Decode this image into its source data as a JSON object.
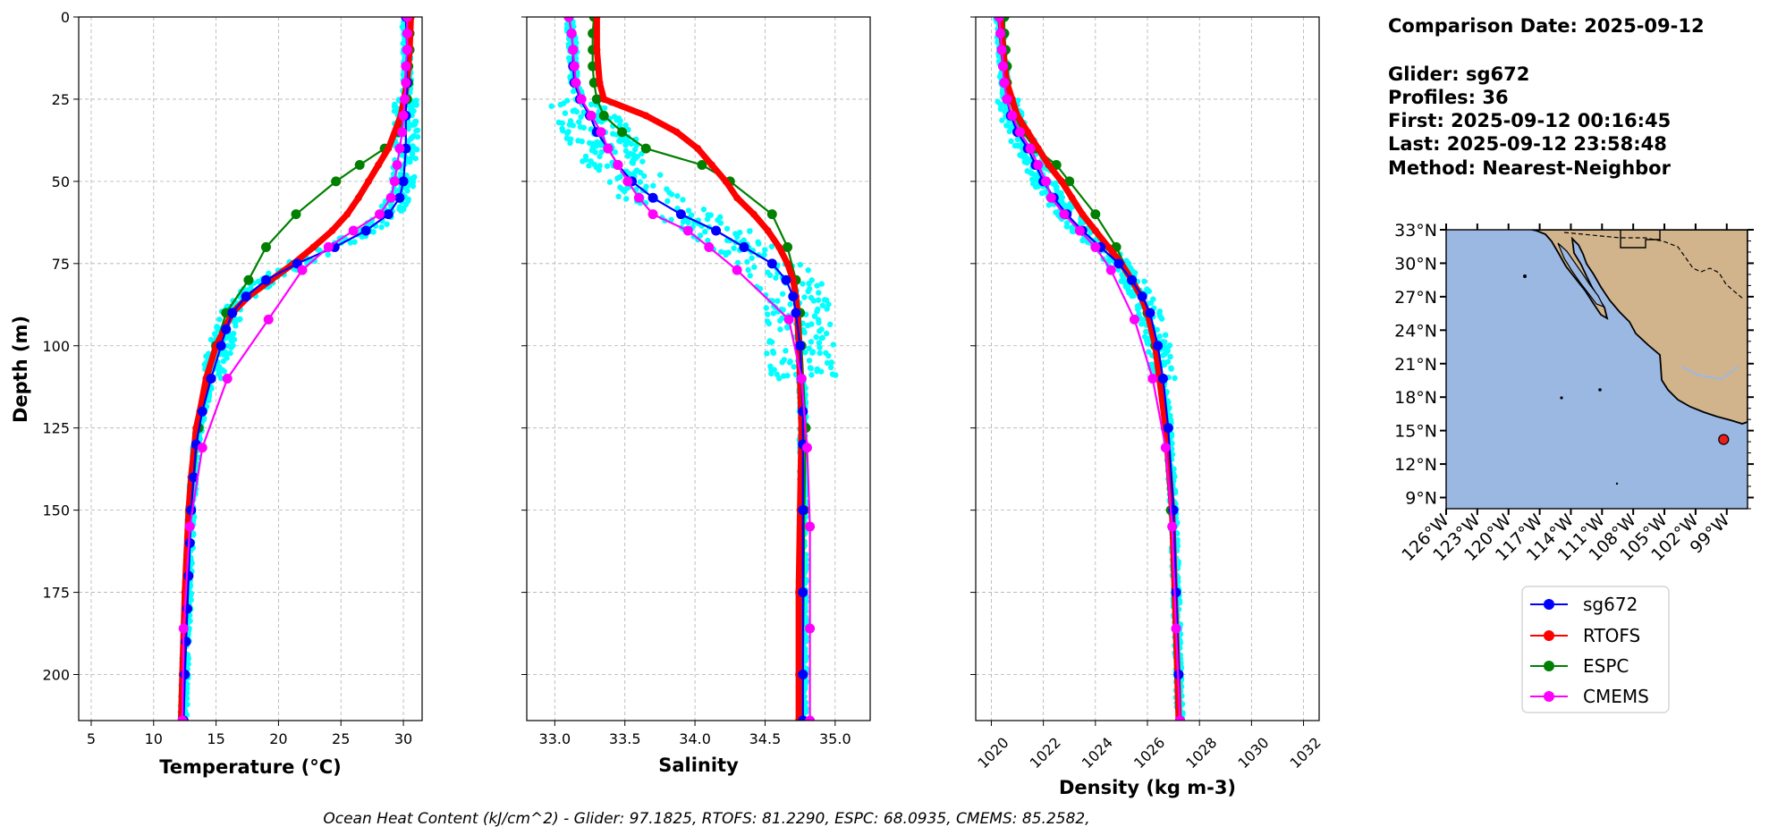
{
  "info": {
    "comparison_date": "Comparison Date: 2025-09-12",
    "glider": "Glider: sg672",
    "profiles": "Profiles: 36",
    "first": "First: 2025-09-12 00:16:45",
    "last": "Last: 2025-09-12 23:58:48",
    "method": "Method: Nearest-Neighbor"
  },
  "footer": "Ocean Heat Content (kJ/cm^2) - Glider: 97.1825,  RTOFS: 81.2290,  ESPC: 68.0935,  CMEMS: 85.2582,",
  "colors": {
    "glider": "#0000ff",
    "glider_cloud": "#00ffff",
    "rtofs": "#ff0000",
    "espc": "#008000",
    "cmems": "#ff00ff",
    "ocean": "#9bb8e3",
    "land": "#d2b48c",
    "station": "#e8201c"
  },
  "legend": [
    "sg672",
    "RTOFS",
    "ESPC",
    "CMEMS"
  ],
  "map": {
    "lat_labels": [
      "33°N",
      "30°N",
      "27°N",
      "24°N",
      "21°N",
      "18°N",
      "15°N",
      "12°N",
      "9°N"
    ],
    "lon_labels": [
      "126°W",
      "123°W",
      "120°W",
      "117°W",
      "114°W",
      "111°W",
      "108°W",
      "105°W",
      "102°W",
      "99°W"
    ],
    "lat_values": [
      33,
      30,
      27,
      24,
      21,
      18,
      15,
      12,
      9
    ],
    "lon_values": [
      -126,
      -123,
      -120,
      -117,
      -114,
      -111,
      -108,
      -105,
      -102,
      -99
    ],
    "lon_range": [
      -126,
      -97
    ],
    "lat_range": [
      8,
      33
    ],
    "station_lon": -99.3,
    "station_lat": 14.2
  },
  "chart_data": [
    {
      "type": "line",
      "title": "",
      "xlabel": "Temperature (°C)",
      "ylabel": "Depth (m)",
      "xlim": [
        4,
        31.5
      ],
      "ylim": [
        214,
        0
      ],
      "xticks": [
        5,
        10,
        15,
        20,
        25,
        30
      ],
      "yticks": [
        0,
        25,
        50,
        75,
        100,
        125,
        150,
        175,
        200
      ],
      "grid": true,
      "series": [
        {
          "name": "sg672",
          "depth": [
            0,
            10,
            20,
            30,
            40,
            50,
            55,
            60,
            65,
            70,
            75,
            80,
            85,
            90,
            95,
            100,
            110,
            120,
            130,
            140,
            150,
            160,
            170,
            180,
            190,
            200,
            214
          ],
          "values": [
            30.2,
            30.3,
            30.3,
            30.2,
            30.2,
            30.0,
            29.7,
            28.8,
            27.0,
            24.5,
            21.5,
            19.0,
            17.4,
            16.3,
            15.8,
            15.4,
            14.6,
            13.9,
            13.4,
            13.2,
            13.0,
            12.9,
            12.8,
            12.7,
            12.6,
            12.5,
            12.4
          ]
        },
        {
          "name": "RTOFS",
          "depth": [
            0,
            10,
            20,
            30,
            40,
            45,
            50,
            55,
            60,
            65,
            70,
            75,
            80,
            85,
            90,
            100,
            110,
            120,
            125,
            140,
            150,
            175,
            200,
            214
          ],
          "values": [
            30.6,
            30.5,
            30.3,
            29.8,
            28.8,
            28.0,
            27.2,
            26.4,
            25.5,
            24.3,
            22.8,
            21.2,
            19.4,
            17.6,
            16.3,
            15.0,
            14.2,
            13.7,
            13.4,
            13.0,
            12.8,
            12.5,
            12.3,
            12.2
          ]
        },
        {
          "name": "ESPC",
          "depth": [
            0,
            5,
            10,
            15,
            20,
            25,
            30,
            35,
            40,
            45,
            50,
            60,
            70,
            80,
            90,
            100,
            125,
            150,
            200,
            214
          ],
          "values": [
            30.5,
            30.5,
            30.5,
            30.4,
            30.4,
            30.3,
            30.1,
            29.6,
            28.5,
            26.5,
            24.6,
            21.4,
            19.0,
            17.6,
            15.8,
            15.0,
            13.6,
            13.0,
            12.5,
            12.4
          ]
        },
        {
          "name": "CMEMS",
          "depth": [
            0,
            5,
            10,
            15,
            20,
            25,
            30,
            35,
            40,
            45,
            50,
            55,
            60,
            65,
            70,
            77,
            92,
            110,
            131,
            155,
            186,
            214
          ],
          "values": [
            30.3,
            30.3,
            30.3,
            30.2,
            30.2,
            30.1,
            30.0,
            29.9,
            29.7,
            29.5,
            29.3,
            29.0,
            28.1,
            26.0,
            24.0,
            21.9,
            19.2,
            15.9,
            13.9,
            12.9,
            12.4,
            12.3
          ]
        }
      ]
    },
    {
      "type": "line",
      "title": "",
      "xlabel": "Salinity",
      "ylabel": "",
      "xlim": [
        32.8,
        35.25
      ],
      "ylim": [
        214,
        0
      ],
      "xticks": [
        33.0,
        33.5,
        34.0,
        34.5,
        35.0
      ],
      "yticks": [
        0,
        25,
        50,
        75,
        100,
        125,
        150,
        175,
        200
      ],
      "grid": true,
      "series": [
        {
          "name": "sg672",
          "depth": [
            0,
            5,
            10,
            15,
            20,
            25,
            30,
            35,
            40,
            45,
            50,
            55,
            60,
            65,
            70,
            75,
            80,
            85,
            90,
            100,
            110,
            120,
            130,
            150,
            175,
            200,
            214
          ],
          "values": [
            33.1,
            33.12,
            33.13,
            33.13,
            33.14,
            33.18,
            33.25,
            33.3,
            33.38,
            33.45,
            33.55,
            33.7,
            33.9,
            34.15,
            34.35,
            34.55,
            34.65,
            34.7,
            34.72,
            34.75,
            34.76,
            34.77,
            34.77,
            34.77,
            34.77,
            34.77,
            34.77
          ]
        },
        {
          "name": "RTOFS",
          "depth": [
            0,
            10,
            20,
            25,
            30,
            35,
            40,
            45,
            50,
            55,
            60,
            65,
            70,
            75,
            80,
            85,
            90,
            100,
            110,
            125,
            150,
            175,
            200,
            214
          ],
          "values": [
            33.3,
            33.3,
            33.32,
            33.35,
            33.65,
            33.87,
            34.02,
            34.12,
            34.22,
            34.3,
            34.42,
            34.52,
            34.6,
            34.66,
            34.7,
            34.72,
            34.73,
            34.74,
            34.75,
            34.76,
            34.75,
            34.74,
            34.74,
            34.74
          ]
        },
        {
          "name": "ESPC",
          "depth": [
            0,
            5,
            10,
            15,
            20,
            25,
            30,
            35,
            40,
            45,
            50,
            60,
            70,
            80,
            90,
            100,
            125,
            150,
            200,
            214
          ],
          "values": [
            33.28,
            33.27,
            33.27,
            33.27,
            33.28,
            33.3,
            33.35,
            33.48,
            33.65,
            34.05,
            34.25,
            34.55,
            34.66,
            34.72,
            34.75,
            34.76,
            34.79,
            34.78,
            34.77,
            34.77
          ]
        },
        {
          "name": "CMEMS",
          "depth": [
            0,
            5,
            10,
            15,
            20,
            25,
            30,
            35,
            40,
            45,
            50,
            55,
            60,
            65,
            70,
            77,
            92,
            110,
            131,
            155,
            186,
            214
          ],
          "values": [
            33.1,
            33.12,
            33.13,
            33.14,
            33.15,
            33.19,
            33.26,
            33.33,
            33.38,
            33.45,
            33.52,
            33.6,
            33.7,
            33.95,
            34.1,
            34.3,
            34.67,
            34.76,
            34.8,
            34.82,
            34.82,
            34.82
          ]
        }
      ]
    },
    {
      "type": "line",
      "title": "",
      "xlabel": "Density (kg m-3)",
      "ylabel": "",
      "xlim": [
        1019.4,
        1032.6
      ],
      "ylim": [
        214,
        0
      ],
      "xticks": [
        1020,
        1022,
        1024,
        1026,
        1028,
        1030,
        1032
      ],
      "yticks": [
        0,
        25,
        50,
        75,
        100,
        125,
        150,
        175,
        200
      ],
      "grid": true,
      "series": [
        {
          "name": "sg672",
          "depth": [
            0,
            5,
            10,
            15,
            20,
            25,
            30,
            35,
            40,
            45,
            50,
            55,
            60,
            65,
            70,
            75,
            80,
            85,
            90,
            100,
            110,
            125,
            150,
            175,
            200,
            214
          ],
          "values": [
            1020.3,
            1020.35,
            1020.4,
            1020.45,
            1020.5,
            1020.6,
            1020.75,
            1021.0,
            1021.4,
            1021.7,
            1022.0,
            1022.4,
            1022.9,
            1023.5,
            1024.2,
            1024.9,
            1025.4,
            1025.8,
            1026.1,
            1026.4,
            1026.6,
            1026.8,
            1027.0,
            1027.1,
            1027.2,
            1027.25
          ]
        },
        {
          "name": "RTOFS",
          "depth": [
            0,
            10,
            20,
            25,
            30,
            35,
            40,
            45,
            50,
            55,
            60,
            65,
            70,
            75,
            80,
            85,
            90,
            100,
            125,
            150,
            175,
            200,
            214
          ],
          "values": [
            1020.35,
            1020.45,
            1020.6,
            1020.8,
            1021.0,
            1021.4,
            1021.8,
            1022.2,
            1022.7,
            1023.1,
            1023.5,
            1024.0,
            1024.5,
            1025.0,
            1025.4,
            1025.75,
            1026.0,
            1026.3,
            1026.7,
            1026.95,
            1027.05,
            1027.15,
            1027.2
          ]
        },
        {
          "name": "ESPC",
          "depth": [
            0,
            5,
            10,
            15,
            20,
            25,
            30,
            35,
            40,
            45,
            50,
            60,
            70,
            80,
            90,
            100,
            125,
            150,
            200,
            214
          ],
          "values": [
            1020.5,
            1020.5,
            1020.55,
            1020.6,
            1020.6,
            1020.7,
            1020.9,
            1021.2,
            1021.7,
            1022.5,
            1023.0,
            1024.0,
            1024.8,
            1025.4,
            1026.0,
            1026.3,
            1026.7,
            1026.9,
            1027.2,
            1027.25
          ]
        },
        {
          "name": "CMEMS",
          "depth": [
            0,
            5,
            10,
            15,
            20,
            25,
            30,
            35,
            40,
            45,
            50,
            55,
            60,
            65,
            70,
            77,
            92,
            110,
            131,
            155,
            186,
            214
          ],
          "values": [
            1020.3,
            1020.35,
            1020.4,
            1020.45,
            1020.5,
            1020.6,
            1020.8,
            1021.1,
            1021.5,
            1021.8,
            1022.1,
            1022.3,
            1022.8,
            1023.4,
            1024.0,
            1024.6,
            1025.5,
            1026.2,
            1026.7,
            1026.95,
            1027.1,
            1027.25
          ]
        }
      ]
    }
  ]
}
